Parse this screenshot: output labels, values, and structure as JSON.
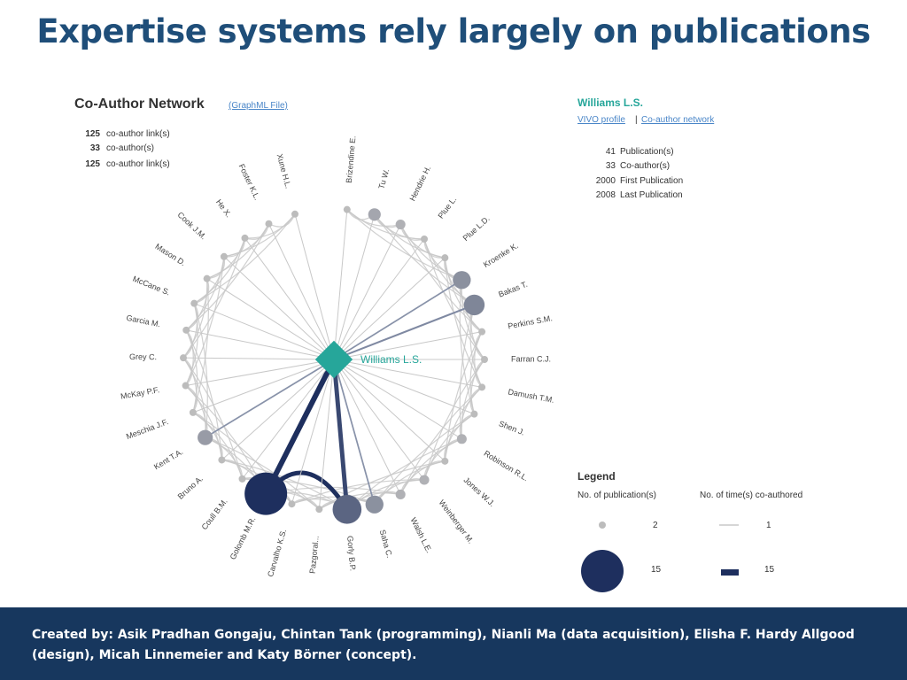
{
  "slide": {
    "title": "Expertise systems rely largely on publications",
    "footer": "Created by: Asik Pradhan Gongaju, Chintan Tank (programming), Nianli Ma (data acquisition), Elisha F. Hardy Allgood (design), Micah Linnemeier and Katy Börner (concept)."
  },
  "network": {
    "title": "Co-Author Network",
    "file_link": "(GraphML File)",
    "stats": [
      {
        "value": "125",
        "label": "co-author link(s)"
      },
      {
        "value": "33",
        "label": "co-author(s)"
      },
      {
        "value": "125",
        "label": "co-author link(s)"
      }
    ],
    "center_label": "Williams L.S.",
    "colors": {
      "center": "#26a69a",
      "edge": "#c8c8c8",
      "strong_edge": "#1e2f5e",
      "node": "#bcbcbc"
    },
    "authors": [
      {
        "name": "Brizendine E.",
        "pubs": 2,
        "collab": 1
      },
      {
        "name": "Tu W.",
        "pubs": 4,
        "collab": 1
      },
      {
        "name": "Hendrie H.",
        "pubs": 3,
        "collab": 1
      },
      {
        "name": "Plue L.",
        "pubs": 2,
        "collab": 1
      },
      {
        "name": "Plue L.D.",
        "pubs": 2,
        "collab": 1
      },
      {
        "name": "Kroenke K.",
        "pubs": 6,
        "collab": 3
      },
      {
        "name": "Bakas T.",
        "pubs": 7,
        "collab": 4
      },
      {
        "name": "Perkins S.M.",
        "pubs": 2,
        "collab": 1
      },
      {
        "name": "Farran C.J.",
        "pubs": 2,
        "collab": 1
      },
      {
        "name": "Damush T.M.",
        "pubs": 2,
        "collab": 1
      },
      {
        "name": "Shen J.",
        "pubs": 2,
        "collab": 1
      },
      {
        "name": "Robinson R.L.",
        "pubs": 3,
        "collab": 1
      },
      {
        "name": "Jones W.J.",
        "pubs": 2,
        "collab": 1
      },
      {
        "name": "Weinberger M.",
        "pubs": 3,
        "collab": 1
      },
      {
        "name": "Walsh L.E.",
        "pubs": 3,
        "collab": 1
      },
      {
        "name": "Saha C.",
        "pubs": 6,
        "collab": 3
      },
      {
        "name": "Gorly B.P.",
        "pubs": 10,
        "collab": 12
      },
      {
        "name": "Pazgoral...",
        "pubs": 2,
        "collab": 1
      },
      {
        "name": "Carvalho K.S.",
        "pubs": 2,
        "collab": 1
      },
      {
        "name": "Golomb M.R.",
        "pubs": 15,
        "collab": 15
      },
      {
        "name": "Coull B.M.",
        "pubs": 2,
        "collab": 1
      },
      {
        "name": "Bruno A.",
        "pubs": 2,
        "collab": 1
      },
      {
        "name": "Kent T.A.",
        "pubs": 5,
        "collab": 3
      },
      {
        "name": "Meschia J.F.",
        "pubs": 2,
        "collab": 1
      },
      {
        "name": "McKay P.F.",
        "pubs": 2,
        "collab": 1
      },
      {
        "name": "Grey C.",
        "pubs": 2,
        "collab": 1
      },
      {
        "name": "Garcia M.",
        "pubs": 2,
        "collab": 1
      },
      {
        "name": "McCane S.",
        "pubs": 2,
        "collab": 1
      },
      {
        "name": "Mason D.",
        "pubs": 2,
        "collab": 1
      },
      {
        "name": "Cook J.M.",
        "pubs": 2,
        "collab": 1
      },
      {
        "name": "He X.",
        "pubs": 2,
        "collab": 1
      },
      {
        "name": "Foster K.L.",
        "pubs": 2,
        "collab": 1
      },
      {
        "name": "Xune H.L.",
        "pubs": 2,
        "collab": 1
      }
    ]
  },
  "profile": {
    "name": "Williams L.S.",
    "vivo_link": "VIVO profile",
    "separator": "|",
    "coauthor_link": "Co-author network",
    "stats": [
      {
        "value": "41",
        "label": "Publication(s)"
      },
      {
        "value": "33",
        "label": "Co-author(s)"
      },
      {
        "value": "2000",
        "label": "First Publication"
      },
      {
        "value": "2008",
        "label": "Last Publication"
      }
    ]
  },
  "legend": {
    "title": "Legend",
    "pub_header": "No. of publication(s)",
    "coauth_header": "No. of time(s) co-authored",
    "pub_min": "2",
    "pub_max": "15",
    "coauth_min": "1",
    "coauth_max": "15"
  }
}
